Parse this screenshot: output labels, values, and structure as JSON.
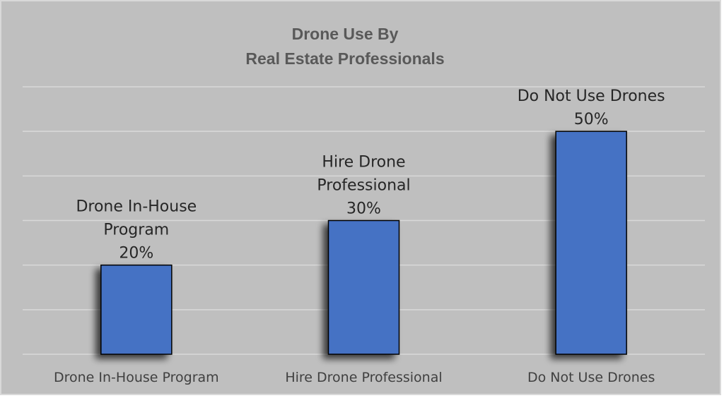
{
  "chart_data": {
    "type": "bar",
    "title": [
      "Drone Use By",
      "Real Estate Professionals"
    ],
    "categories": [
      "Drone In-House Program",
      "Hire Drone Professional",
      "Do Not Use Drones"
    ],
    "values": [
      20,
      30,
      50
    ],
    "data_labels": [
      [
        "Drone In-House",
        "Program",
        "20%"
      ],
      [
        "Hire Drone",
        "Professional",
        "30%"
      ],
      [
        "Do Not Use Drones",
        "50%"
      ]
    ],
    "unit": "%",
    "ylim": [
      0,
      60
    ],
    "gridlines": [
      0,
      10,
      20,
      30,
      40,
      50,
      60
    ],
    "grid": true,
    "legend": "none",
    "colors": {
      "background": "#bfbfbf",
      "bar": "#4472c4",
      "bar_outline": "#000000",
      "gridline": "#d9d9d9",
      "title": "#595959"
    }
  }
}
